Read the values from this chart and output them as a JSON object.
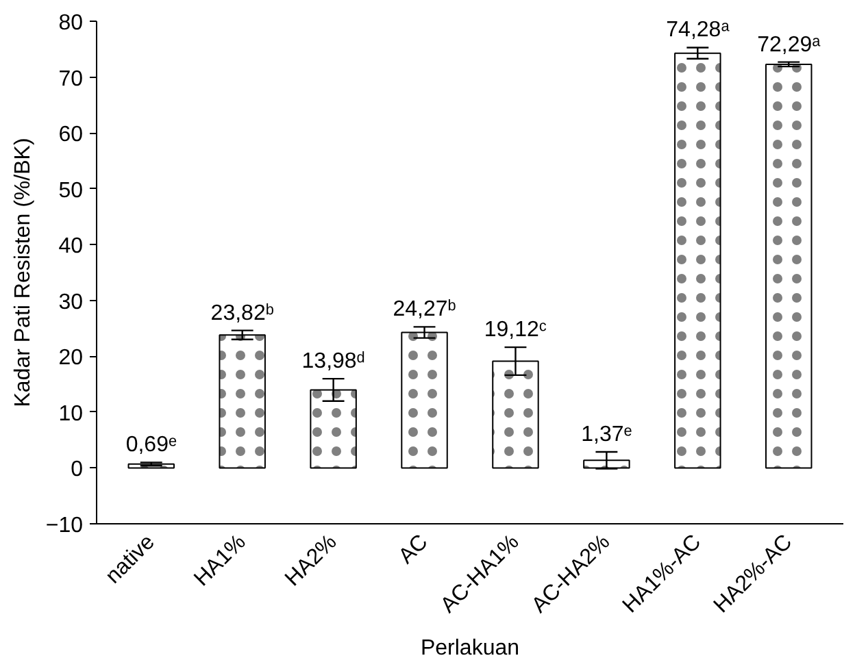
{
  "chart_data": {
    "type": "bar",
    "xlabel": "Perlakuan",
    "ylabel": "Kadar Pati Resisten (%/BK)",
    "categories": [
      "native",
      "HA1%",
      "HA2%",
      "AC",
      "AC-HA1%",
      "AC-HA2%",
      "HA1%-AC",
      "HA2%-AC"
    ],
    "values": [
      0.69,
      23.82,
      13.98,
      24.27,
      19.12,
      1.37,
      74.28,
      72.29
    ],
    "errors": [
      0.3,
      0.8,
      2.0,
      1.0,
      2.5,
      1.5,
      1.0,
      0.4
    ],
    "value_labels": [
      "0,69ᵉ",
      "23,82ᵇ",
      "13,98ᵈ",
      "24,27ᵇ",
      "19,12ᶜ",
      "1,37ᵉ",
      "74,28ᵃ",
      "72,29ᵃ"
    ],
    "color": "#ffffff",
    "ylim": [
      -10,
      80
    ],
    "yticks": [
      -10,
      0,
      10,
      20,
      30,
      40,
      50,
      60,
      70,
      80
    ],
    "grid": false
  }
}
